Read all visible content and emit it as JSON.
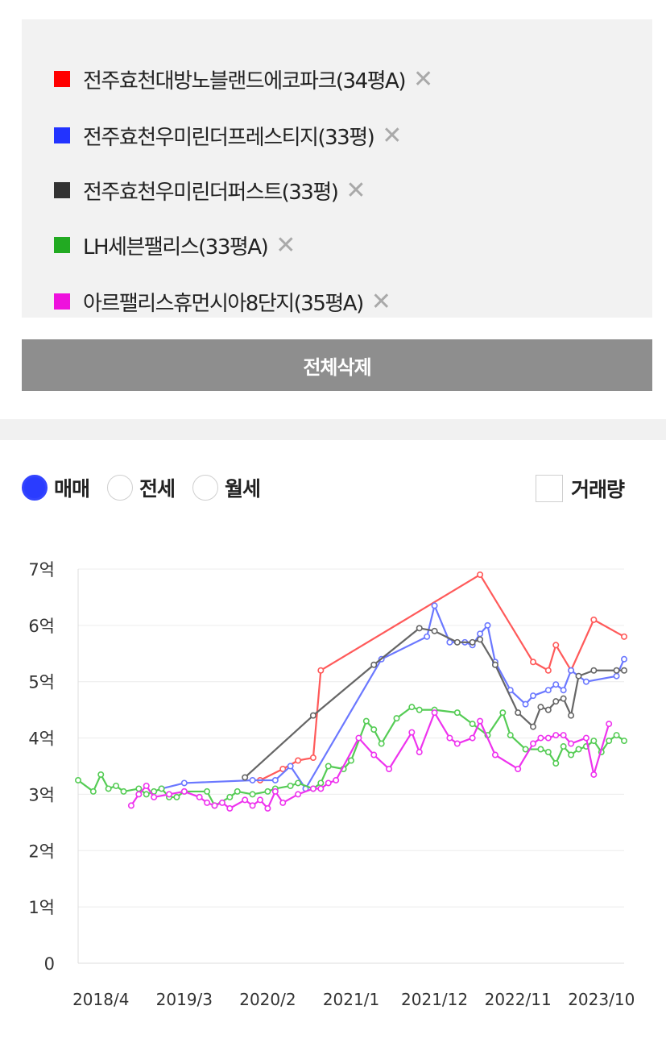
{
  "legend": {
    "items": [
      {
        "label": "전주효천대방노블랜드에코파크(34평A)",
        "color": "#ff0000"
      },
      {
        "label": "전주효천우미린더프레스티지(33평)",
        "color": "#2233ff"
      },
      {
        "label": "전주효천우미린더퍼스트(33평)",
        "color": "#333333"
      },
      {
        "label": "LH세븐팰리스(33평A)",
        "color": "#22aa22"
      },
      {
        "label": "아르팰리스휴먼시아8단지(35평A)",
        "color": "#ee11dd"
      }
    ],
    "remove_glyph": "✕"
  },
  "clear_all_label": "전체삭제",
  "tabs": {
    "sale": "매매",
    "jeonse": "전세",
    "monthly": "월세",
    "selected": "sale"
  },
  "volume_label": "거래량",
  "chart_data": {
    "type": "line",
    "x_range": [
      "2018-01",
      "2024-01"
    ],
    "xticks": [
      "2018/4",
      "2019/3",
      "2020/2",
      "2021/1",
      "2021/12",
      "2022/11",
      "2023/10"
    ],
    "xtick_dates": [
      "2018-04",
      "2019-03",
      "2020-02",
      "2021-01",
      "2021-12",
      "2022-11",
      "2023-10"
    ],
    "yticks": [
      "0",
      "1억",
      "2억",
      "3억",
      "4억",
      "5억",
      "6억",
      "7억"
    ],
    "ylim": [
      0,
      7
    ],
    "y_unit": "억",
    "grid": true,
    "series": [
      {
        "name": "전주효천대방노블랜드에코파크(34평A)",
        "color": "#ff5a5a",
        "points": [
          [
            "2020-01",
            3.25
          ],
          [
            "2020-04",
            3.45
          ],
          [
            "2020-06",
            3.6
          ],
          [
            "2020-08",
            3.65
          ],
          [
            "2020-09",
            5.2
          ],
          [
            "2022-06",
            6.9
          ],
          [
            "2023-01",
            5.35
          ],
          [
            "2023-03",
            5.2
          ],
          [
            "2023-04",
            5.65
          ],
          [
            "2023-06",
            5.2
          ],
          [
            "2023-09",
            6.1
          ],
          [
            "2024-01",
            5.8
          ]
        ]
      },
      {
        "name": "전주효천우미린더프레스티지(33평)",
        "color": "#6b78ff",
        "points": [
          [
            "2018-12",
            3.1
          ],
          [
            "2019-03",
            3.2
          ],
          [
            "2019-12",
            3.25
          ],
          [
            "2020-03",
            3.25
          ],
          [
            "2020-05",
            3.5
          ],
          [
            "2020-07",
            3.1
          ],
          [
            "2021-05",
            5.4
          ],
          [
            "2021-11",
            5.8
          ],
          [
            "2021-12",
            6.35
          ],
          [
            "2022-02",
            5.7
          ],
          [
            "2022-04",
            5.7
          ],
          [
            "2022-05",
            5.65
          ],
          [
            "2022-06",
            5.85
          ],
          [
            "2022-07",
            6.0
          ],
          [
            "2022-08",
            5.35
          ],
          [
            "2022-10",
            4.85
          ],
          [
            "2022-12",
            4.6
          ],
          [
            "2023-01",
            4.75
          ],
          [
            "2023-03",
            4.85
          ],
          [
            "2023-04",
            4.95
          ],
          [
            "2023-05",
            4.85
          ],
          [
            "2023-06",
            5.2
          ],
          [
            "2023-08",
            5.0
          ],
          [
            "2023-12",
            5.1
          ],
          [
            "2024-01",
            5.4
          ]
        ]
      },
      {
        "name": "전주효천우미린더퍼스트(33평)",
        "color": "#666666",
        "points": [
          [
            "2019-11",
            3.3
          ],
          [
            "2020-08",
            4.4
          ],
          [
            "2021-04",
            5.3
          ],
          [
            "2021-10",
            5.95
          ],
          [
            "2021-12",
            5.9
          ],
          [
            "2022-03",
            5.7
          ],
          [
            "2022-05",
            5.7
          ],
          [
            "2022-06",
            5.75
          ],
          [
            "2022-08",
            5.3
          ],
          [
            "2022-11",
            4.45
          ],
          [
            "2023-01",
            4.2
          ],
          [
            "2023-02",
            4.55
          ],
          [
            "2023-03",
            4.5
          ],
          [
            "2023-04",
            4.65
          ],
          [
            "2023-05",
            4.7
          ],
          [
            "2023-06",
            4.4
          ],
          [
            "2023-07",
            5.1
          ],
          [
            "2023-09",
            5.2
          ],
          [
            "2023-12",
            5.2
          ],
          [
            "2024-01",
            5.2
          ]
        ]
      },
      {
        "name": "LH세븐팰리스(33평A)",
        "color": "#55cc55",
        "points": [
          [
            "2018-01",
            3.25
          ],
          [
            "2018-03",
            3.05
          ],
          [
            "2018-04",
            3.35
          ],
          [
            "2018-05",
            3.1
          ],
          [
            "2018-06",
            3.15
          ],
          [
            "2018-07",
            3.05
          ],
          [
            "2018-09",
            3.1
          ],
          [
            "2018-10",
            3.0
          ],
          [
            "2018-11",
            3.05
          ],
          [
            "2018-12",
            3.1
          ],
          [
            "2019-01",
            2.95
          ],
          [
            "2019-02",
            2.95
          ],
          [
            "2019-03",
            3.05
          ],
          [
            "2019-06",
            3.05
          ],
          [
            "2019-07",
            2.8
          ],
          [
            "2019-09",
            2.95
          ],
          [
            "2019-10",
            3.05
          ],
          [
            "2019-12",
            3.0
          ],
          [
            "2020-02",
            3.05
          ],
          [
            "2020-03",
            3.1
          ],
          [
            "2020-05",
            3.15
          ],
          [
            "2020-06",
            3.2
          ],
          [
            "2020-08",
            3.1
          ],
          [
            "2020-09",
            3.2
          ],
          [
            "2020-10",
            3.5
          ],
          [
            "2020-12",
            3.45
          ],
          [
            "2021-01",
            3.6
          ],
          [
            "2021-03",
            4.3
          ],
          [
            "2021-04",
            4.15
          ],
          [
            "2021-05",
            3.9
          ],
          [
            "2021-07",
            4.35
          ],
          [
            "2021-09",
            4.55
          ],
          [
            "2021-10",
            4.5
          ],
          [
            "2021-12",
            4.5
          ],
          [
            "2022-03",
            4.45
          ],
          [
            "2022-05",
            4.25
          ],
          [
            "2022-07",
            4.05
          ],
          [
            "2022-09",
            4.45
          ],
          [
            "2022-10",
            4.05
          ],
          [
            "2022-12",
            3.8
          ],
          [
            "2023-02",
            3.8
          ],
          [
            "2023-03",
            3.75
          ],
          [
            "2023-04",
            3.55
          ],
          [
            "2023-05",
            3.85
          ],
          [
            "2023-06",
            3.7
          ],
          [
            "2023-07",
            3.8
          ],
          [
            "2023-08",
            3.85
          ],
          [
            "2023-09",
            3.95
          ],
          [
            "2023-10",
            3.75
          ],
          [
            "2023-11",
            3.95
          ],
          [
            "2023-12",
            4.05
          ],
          [
            "2024-01",
            3.95
          ]
        ]
      },
      {
        "name": "아르팰리스휴먼시아8단지(35평A)",
        "color": "#ee33ee",
        "points": [
          [
            "2018-08",
            2.8
          ],
          [
            "2018-09",
            3.0
          ],
          [
            "2018-10",
            3.15
          ],
          [
            "2018-11",
            2.95
          ],
          [
            "2019-01",
            3.0
          ],
          [
            "2019-03",
            3.05
          ],
          [
            "2019-05",
            2.95
          ],
          [
            "2019-06",
            2.85
          ],
          [
            "2019-07",
            2.8
          ],
          [
            "2019-08",
            2.85
          ],
          [
            "2019-09",
            2.75
          ],
          [
            "2019-11",
            2.9
          ],
          [
            "2019-12",
            2.8
          ],
          [
            "2020-01",
            2.9
          ],
          [
            "2020-02",
            2.75
          ],
          [
            "2020-03",
            3.05
          ],
          [
            "2020-04",
            2.85
          ],
          [
            "2020-06",
            3.0
          ],
          [
            "2020-08",
            3.1
          ],
          [
            "2020-09",
            3.1
          ],
          [
            "2020-10",
            3.2
          ],
          [
            "2020-11",
            3.25
          ],
          [
            "2021-02",
            4.0
          ],
          [
            "2021-04",
            3.7
          ],
          [
            "2021-06",
            3.45
          ],
          [
            "2021-09",
            4.1
          ],
          [
            "2021-10",
            3.75
          ],
          [
            "2021-12",
            4.45
          ],
          [
            "2022-02",
            4.0
          ],
          [
            "2022-03",
            3.9
          ],
          [
            "2022-05",
            4.0
          ],
          [
            "2022-06",
            4.3
          ],
          [
            "2022-08",
            3.7
          ],
          [
            "2022-11",
            3.45
          ],
          [
            "2023-01",
            3.9
          ],
          [
            "2023-02",
            4.0
          ],
          [
            "2023-03",
            4.0
          ],
          [
            "2023-04",
            4.05
          ],
          [
            "2023-05",
            4.05
          ],
          [
            "2023-06",
            3.9
          ],
          [
            "2023-08",
            4.0
          ],
          [
            "2023-09",
            3.35
          ],
          [
            "2023-11",
            4.25
          ]
        ]
      }
    ]
  }
}
